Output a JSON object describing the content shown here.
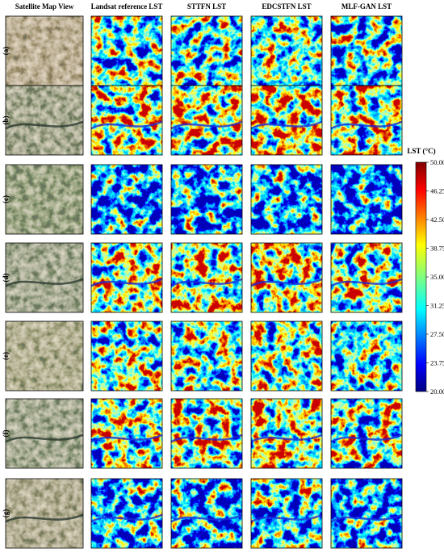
{
  "headers": [
    "Satellite Map View",
    "Landsat reference LST",
    "STTFN LST",
    "EDCSTFN LST",
    "MLF-GAN LST"
  ],
  "rows": [
    "(a)",
    "(b)",
    "(c)",
    "(d)",
    "(e)",
    "(f)",
    "(g)"
  ],
  "colorbar": {
    "label": "LST (°C)",
    "ticks": [
      "50.00",
      "46.25",
      "42.50",
      "38.75",
      "35.00",
      "31.25",
      "27.50",
      "23.75",
      "20.00"
    ]
  }
}
